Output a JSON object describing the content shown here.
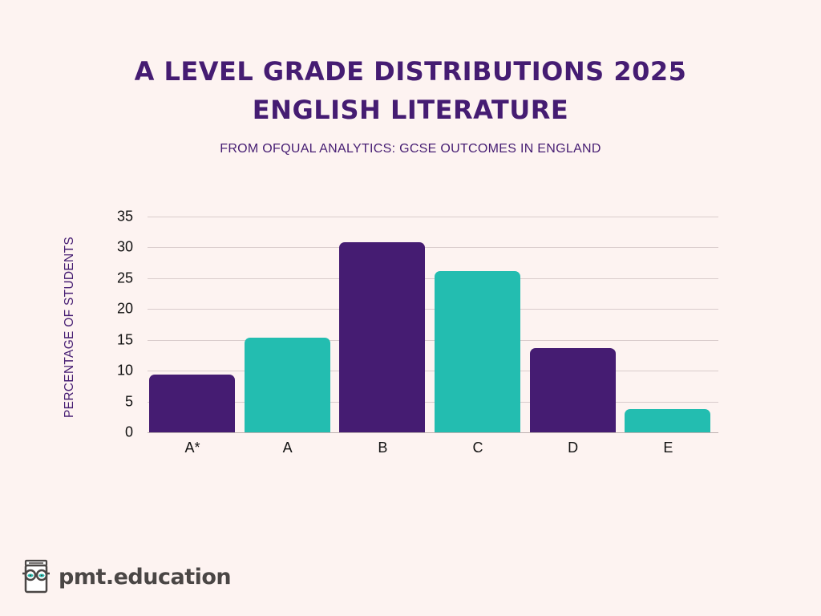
{
  "header": {
    "title_line1": "A LEVEL GRADE DISTRIBUTIONS 2025",
    "title_line2": "ENGLISH LITERATURE",
    "subtitle": "FROM OFQUAL ANALYTICS: GCSE OUTCOMES IN ENGLAND"
  },
  "axes": {
    "ylabel": "PERCENTAGE OF STUDENTS",
    "yticks": [
      "0",
      "5",
      "10",
      "15",
      "20",
      "25",
      "30",
      "35"
    ]
  },
  "colors": {
    "purple": "#451c72",
    "teal": "#23bdb0",
    "background": "#fdf3f1"
  },
  "branding": {
    "logo_text": "pmt.education",
    "logo_icon": "book-with-glasses-icon"
  },
  "chart_data": {
    "type": "bar",
    "title": "A LEVEL GRADE DISTRIBUTIONS 2025 ENGLISH LITERATURE",
    "subtitle": "FROM OFQUAL ANALYTICS: GCSE OUTCOMES IN ENGLAND",
    "categories": [
      "A*",
      "A",
      "B",
      "C",
      "D",
      "E"
    ],
    "values": [
      9.4,
      15.3,
      30.9,
      26.1,
      13.7,
      3.8
    ],
    "bar_colors": [
      "#451c72",
      "#23bdb0",
      "#451c72",
      "#23bdb0",
      "#451c72",
      "#23bdb0"
    ],
    "xlabel": "",
    "ylabel": "PERCENTAGE OF STUDENTS",
    "ylim": [
      0,
      35
    ],
    "yticks": [
      0,
      5,
      10,
      15,
      20,
      25,
      30,
      35
    ],
    "grid": true,
    "legend": null
  }
}
